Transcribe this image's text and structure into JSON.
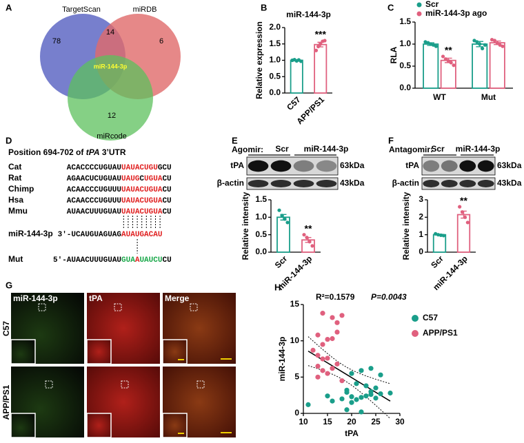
{
  "panel_labels": [
    "A",
    "B",
    "C",
    "D",
    "E",
    "F",
    "G",
    "H"
  ],
  "venn": {
    "sets": [
      "TargetScan",
      "miRDB",
      "miRcode"
    ],
    "counts": [
      78,
      14,
      6,
      12
    ],
    "center": "miR-144-3p"
  },
  "alignment": {
    "title_parts": [
      "Position 694-702 of ",
      "tPA",
      " 3’UTR"
    ],
    "rows": [
      {
        "name": "Cat",
        "segments": [
          "ACACCCCUGUAU",
          "UAUACUGU",
          "GCU"
        ],
        "colors": [
          "#000000",
          "#e02020",
          "#000000"
        ]
      },
      {
        "name": "Rat",
        "segments": [
          "AGAACUCUGUAU",
          "UAUG",
          "C",
          "UGUA",
          "CU"
        ],
        "colors": [
          "#000000",
          "#e02020",
          "#000000",
          "#e02020",
          "#000000"
        ]
      },
      {
        "name": "Chimp",
        "segments": [
          "ACAACCCUGUUU",
          "UAUACUGUA",
          "CU"
        ],
        "colors": [
          "#000000",
          "#e02020",
          "#000000"
        ]
      },
      {
        "name": "Hsa",
        "segments": [
          "ACAACCCUGUUU",
          "UAUACUGUA",
          "CU"
        ],
        "colors": [
          "#000000",
          "#e02020",
          "#000000"
        ]
      },
      {
        "name": "Mmu",
        "segments": [
          "AUAACUUUGUAU",
          "UAUACUGUA",
          "CU"
        ],
        "colors": [
          "#000000",
          "#e02020",
          "#000000"
        ]
      },
      {
        "name": "miR-144-3p",
        "segments": [
          "3'-UCAUGUAGUAG",
          "AUAUGACAU"
        ],
        "colors": [
          "#000000",
          "#e02020"
        ]
      },
      {
        "name": "Mut",
        "segments": [
          "5'-AUAACUUUGUAU",
          "GUA",
          "A",
          "UAUCU",
          "CU"
        ],
        "colors": [
          "#000000",
          "#1aa84a",
          "#e02020",
          "#1aa84a",
          "#000000"
        ]
      }
    ]
  },
  "blots": [
    {
      "treatment": "Agomir:",
      "groups": [
        "Scr",
        "miR-144-3p"
      ],
      "proteins": [
        "tPA",
        "β-actin"
      ],
      "sizes": [
        "63kDa",
        "43kDa"
      ]
    },
    {
      "treatment": "Antagomir:",
      "groups": [
        "Scr",
        "miR-144-3p"
      ],
      "proteins": [
        "tPA",
        "β-actin"
      ],
      "sizes": [
        "63kDa",
        "43kDa"
      ]
    }
  ],
  "images": {
    "channels": [
      "miR-144-3p",
      "tPA",
      "Merge"
    ],
    "groups": [
      "C57",
      "APP/PS1"
    ]
  },
  "chart_data": [
    {
      "type": "bar",
      "title": "miR-144-3p",
      "y_label": "Relative expression",
      "categories": [
        "C57",
        "APP/PS1"
      ],
      "values": [
        1.0,
        1.48
      ],
      "errors": [
        0.02,
        0.07
      ],
      "points": [
        [
          1.0,
          1.02,
          0.98,
          1.01,
          0.97
        ],
        [
          1.3,
          1.42,
          1.5,
          1.58,
          1.6
        ]
      ],
      "colors": [
        "#1a9e8a",
        "#e0607e"
      ],
      "significance": [
        null,
        "***"
      ],
      "ylim": [
        0,
        2
      ],
      "yticks": [
        {
          "value": 0,
          "label": "0.0"
        },
        0.5,
        {
          "value": 1,
          "label": "1.0"
        },
        1.5,
        {
          "value": 2,
          "label": "2.0"
        }
      ],
      "x_label_rotation": 45
    },
    {
      "type": "bar",
      "y_label": "RLA",
      "categories": [
        "WT",
        "Mut"
      ],
      "series": [
        {
          "name": "Scr",
          "color": "#1a9e8a",
          "values": [
            1.0,
            1.0
          ],
          "errors": [
            0.03,
            0.06
          ],
          "points": [
            [
              1.05,
              1.03,
              1.0,
              0.98,
              0.95
            ],
            [
              1.08,
              1.05,
              1.0,
              0.9,
              0.98
            ]
          ]
        },
        {
          "name": "miR-144-3p ago",
          "color": "#e0607e",
          "values": [
            0.63,
            1.03
          ],
          "errors": [
            0.05,
            0.04
          ],
          "points": [
            [
              0.72,
              0.66,
              0.62,
              0.58,
              0.52
            ],
            [
              1.1,
              1.08,
              1.02,
              0.98,
              0.95
            ]
          ],
          "significance": [
            "**",
            null
          ]
        }
      ],
      "ylim": [
        0,
        1.5
      ],
      "yticks": [
        {
          "value": 0,
          "label": "0.0"
        },
        0.5,
        {
          "value": 1,
          "label": "1.0"
        },
        1.5
      ],
      "legend": "top"
    },
    {
      "type": "bar",
      "y_label": "Relative intensity",
      "categories": [
        "Scr",
        "miR-144-3p"
      ],
      "values": [
        1.0,
        0.35
      ],
      "errors": [
        0.08,
        0.07
      ],
      "points": [
        [
          1.2,
          1.05,
          0.95,
          0.85
        ],
        [
          0.5,
          0.42,
          0.3,
          0.18
        ]
      ],
      "colors": [
        "#1a9e8a",
        "#e0607e"
      ],
      "significance": [
        null,
        "**"
      ],
      "ylim": [
        0,
        1.5
      ],
      "yticks": [
        {
          "value": 0,
          "label": "0.0"
        },
        0.5,
        {
          "value": 1,
          "label": "1.0"
        },
        1.5
      ],
      "x_label_rotation": 45
    },
    {
      "type": "bar",
      "y_label": "Relative intensity",
      "categories": [
        "Scr",
        "miR-144-3p"
      ],
      "values": [
        1.0,
        2.15
      ],
      "errors": [
        0.03,
        0.2
      ],
      "points": [
        [
          1.05,
          1.0,
          0.97,
          0.95
        ],
        [
          2.6,
          2.3,
          2.0,
          1.7
        ]
      ],
      "colors": [
        "#1a9e8a",
        "#e0607e"
      ],
      "significance": [
        null,
        "**"
      ],
      "ylim": [
        0,
        3
      ],
      "yticks": [
        0,
        1,
        2,
        3
      ],
      "x_label_rotation": 45
    },
    {
      "type": "scatter",
      "x_label": "tPA",
      "y_label": "miR-144-3p",
      "annotations": [
        "R²=0.1579",
        "P=0.0043"
      ],
      "xlim": [
        10,
        30
      ],
      "xticks": [
        10,
        15,
        20,
        25,
        30
      ],
      "ylim": [
        0,
        15
      ],
      "yticks": [
        0,
        5,
        10,
        15
      ],
      "legend": "right",
      "series": [
        {
          "name": "C57",
          "color": "#1a9e8a",
          "x": [
            20,
            22,
            24,
            26,
            21,
            23,
            25,
            28,
            19,
            20,
            22,
            23,
            24,
            18,
            21,
            25,
            20,
            19,
            22,
            11,
            16,
            15,
            26,
            24,
            19
          ],
          "values": [
            5.5,
            5.9,
            6.2,
            5.3,
            4.1,
            3.8,
            3.5,
            2.8,
            3.2,
            2.3,
            2.2,
            2.4,
            2.6,
            2.0,
            1.9,
            2.1,
            1.5,
            0.5,
            0.2,
            1.2,
            1.7,
            2.4,
            2.7,
            3.0,
            2.9
          ]
        },
        {
          "name": "APP/PS1",
          "color": "#e0607e",
          "x": [
            14,
            16,
            17,
            18,
            17,
            16,
            13,
            14,
            15,
            12,
            13,
            14,
            15,
            13,
            14,
            16,
            15,
            13,
            18,
            17
          ],
          "values": [
            13.8,
            13.2,
            12.5,
            13.5,
            11.2,
            10.3,
            10.8,
            9.5,
            10.2,
            8.7,
            8.0,
            7.5,
            7.6,
            6.5,
            5.9,
            6.2,
            5.5,
            5.0,
            4.5,
            6.8
          ]
        }
      ]
    }
  ]
}
